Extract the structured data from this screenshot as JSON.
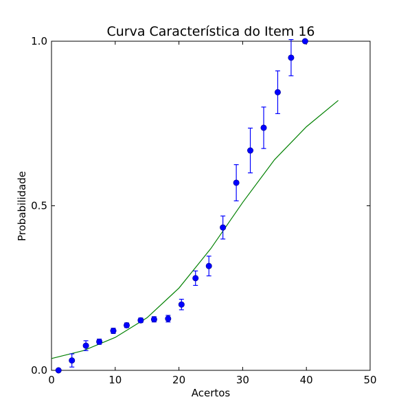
{
  "chart_data": {
    "type": "scatter",
    "title": "Curva Característica do Item 16",
    "xlabel": "Acertos",
    "ylabel": "Probabilidade",
    "xlim": [
      0,
      50
    ],
    "ylim": [
      0.0,
      1.0
    ],
    "x_ticks": [
      0,
      10,
      20,
      30,
      40,
      50
    ],
    "x_tick_labels": [
      "0",
      "10",
      "20",
      "30",
      "40",
      "50"
    ],
    "y_ticks": [
      0.0,
      0.5,
      1.0
    ],
    "y_tick_labels": [
      "0.0",
      "0.5",
      "1.0"
    ],
    "grid": false,
    "series": [
      {
        "kind": "points_with_error_bars",
        "color": "#0000ff",
        "points": [
          {
            "x": 1.1,
            "y": 0.0,
            "err": 0.0
          },
          {
            "x": 3.2,
            "y": 0.03,
            "err": 0.02
          },
          {
            "x": 5.4,
            "y": 0.075,
            "err": 0.015
          },
          {
            "x": 7.5,
            "y": 0.087,
            "err": 0.008
          },
          {
            "x": 9.7,
            "y": 0.12,
            "err": 0.008
          },
          {
            "x": 11.8,
            "y": 0.137,
            "err": 0.007
          },
          {
            "x": 14.0,
            "y": 0.152,
            "err": 0.007
          },
          {
            "x": 16.1,
            "y": 0.155,
            "err": 0.008
          },
          {
            "x": 18.3,
            "y": 0.157,
            "err": 0.01
          },
          {
            "x": 20.4,
            "y": 0.2,
            "err": 0.016
          },
          {
            "x": 22.6,
            "y": 0.28,
            "err": 0.022
          },
          {
            "x": 24.7,
            "y": 0.317,
            "err": 0.03
          },
          {
            "x": 26.9,
            "y": 0.434,
            "err": 0.035
          },
          {
            "x": 29.0,
            "y": 0.57,
            "err": 0.055
          },
          {
            "x": 31.2,
            "y": 0.668,
            "err": 0.068
          },
          {
            "x": 33.3,
            "y": 0.737,
            "err": 0.063
          },
          {
            "x": 35.5,
            "y": 0.845,
            "err": 0.065
          },
          {
            "x": 37.6,
            "y": 0.95,
            "err": 0.055
          },
          {
            "x": 39.8,
            "y": 1.0,
            "err": 0.0
          }
        ]
      },
      {
        "kind": "curve",
        "color": "#008000",
        "x": [
          0,
          5,
          10,
          15,
          20,
          25,
          30,
          35,
          40,
          45
        ],
        "y": [
          0.036,
          0.06,
          0.1,
          0.16,
          0.25,
          0.37,
          0.51,
          0.64,
          0.74,
          0.82
        ]
      }
    ]
  }
}
